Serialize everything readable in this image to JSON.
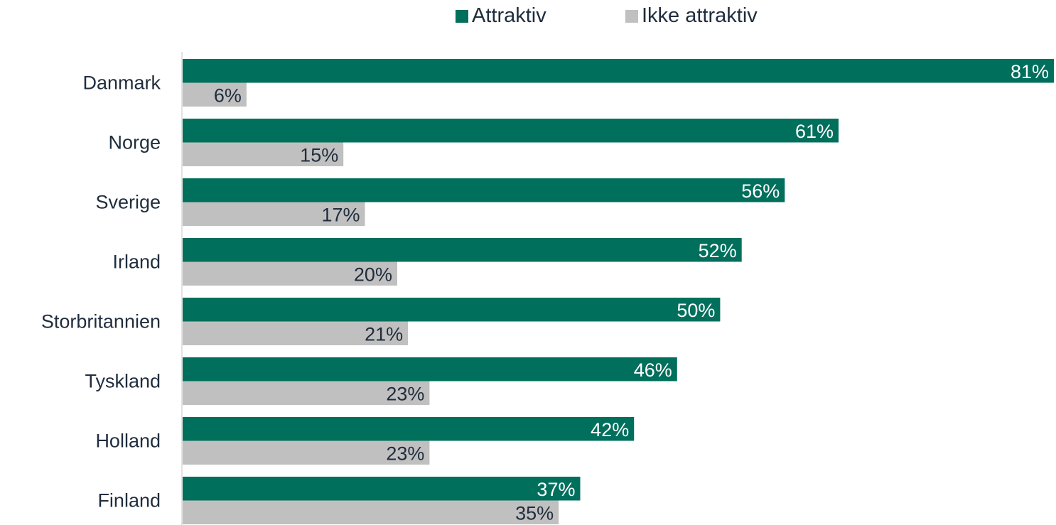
{
  "chart_data": {
    "type": "bar",
    "orientation": "horizontal",
    "categories": [
      "Danmark",
      "Norge",
      "Sverige",
      "Irland",
      "Storbritannien",
      "Tyskland",
      "Holland",
      "Finland"
    ],
    "series": [
      {
        "name": "Attraktiv",
        "color": "#006f5c",
        "values": [
          81,
          61,
          56,
          52,
          50,
          46,
          42,
          37
        ],
        "labels": [
          "81%",
          "61%",
          "56%",
          "52%",
          "50%",
          "46%",
          "42%",
          "37%"
        ]
      },
      {
        "name": "Ikke attraktiv",
        "color": "#c0c0c0",
        "values": [
          6,
          15,
          17,
          20,
          21,
          23,
          23,
          35
        ],
        "labels": [
          "6%",
          "15%",
          "17%",
          "20%",
          "21%",
          "23%",
          "23%",
          "35%"
        ]
      }
    ],
    "title": "",
    "xlabel": "",
    "ylabel": "",
    "xlim": [
      0,
      81
    ],
    "grid": false,
    "legend_position": "top-center",
    "label_color_series_0": "#ffffff",
    "label_color_series_1": "#1f2d3d",
    "category_label_color": "#1f2d3d",
    "axis_line_color": "#d9d9d9"
  }
}
